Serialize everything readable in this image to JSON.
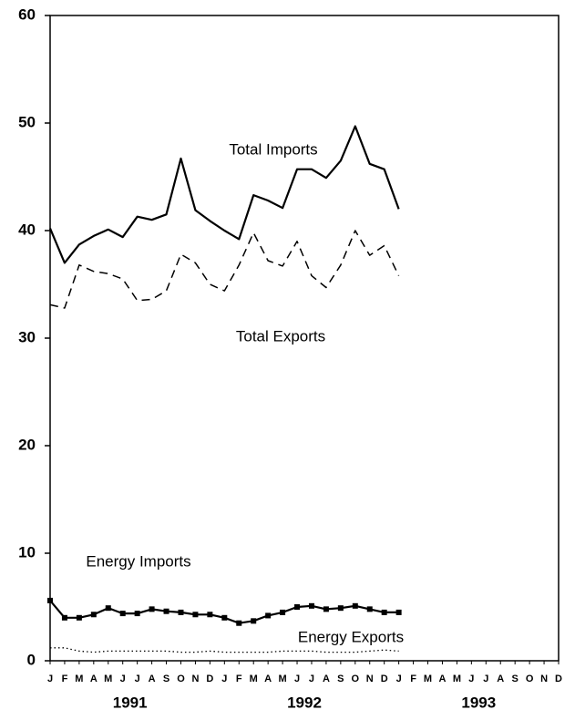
{
  "chart_data": {
    "type": "line",
    "categories": [
      "J",
      "F",
      "M",
      "A",
      "M",
      "J",
      "J",
      "A",
      "S",
      "O",
      "N",
      "D",
      "J",
      "F",
      "M",
      "A",
      "M",
      "J",
      "J",
      "A",
      "S",
      "O",
      "N",
      "D",
      "J",
      "F",
      "M",
      "A",
      "M",
      "J",
      "J",
      "A",
      "S",
      "O",
      "N",
      "D"
    ],
    "years": [
      "1991",
      "1992",
      "1993"
    ],
    "ylim": [
      0,
      60
    ],
    "yticks": [
      0,
      10,
      20,
      30,
      40,
      50,
      60
    ],
    "series": [
      {
        "name": "Total Imports",
        "color": "#000000",
        "style": "solid",
        "marker": "none",
        "values": [
          40.2,
          37.0,
          38.7,
          39.5,
          40.1,
          39.4,
          41.3,
          41.0,
          41.5,
          46.7,
          41.9,
          40.9,
          40.0,
          39.2,
          43.3,
          42.8,
          42.1,
          45.7,
          45.7,
          44.9,
          46.5,
          49.7,
          46.2,
          45.7,
          42.0,
          null,
          null,
          null,
          null,
          null,
          null,
          null,
          null,
          null,
          null,
          null
        ]
      },
      {
        "name": "Total Exports",
        "color": "#000000",
        "style": "dashed",
        "marker": "none",
        "values": [
          33.1,
          32.8,
          36.8,
          36.2,
          36.0,
          35.5,
          33.5,
          33.6,
          34.4,
          37.8,
          37.0,
          35.0,
          34.4,
          36.8,
          39.8,
          37.2,
          36.7,
          39.0,
          35.8,
          34.7,
          36.8,
          40.0,
          37.7,
          38.6,
          35.8,
          null,
          null,
          null,
          null,
          null,
          null,
          null,
          null,
          null,
          null,
          null
        ]
      },
      {
        "name": "Energy Imports",
        "color": "#000000",
        "style": "solid",
        "marker": "square",
        "values": [
          5.6,
          4.0,
          4.0,
          4.3,
          4.9,
          4.4,
          4.4,
          4.8,
          4.6,
          4.5,
          4.3,
          4.3,
          4.0,
          3.5,
          3.7,
          4.2,
          4.5,
          5.0,
          5.1,
          4.8,
          4.9,
          5.1,
          4.8,
          4.5,
          4.5,
          null,
          null,
          null,
          null,
          null,
          null,
          null,
          null,
          null,
          null,
          null
        ]
      },
      {
        "name": "Energy Exports",
        "color": "#000000",
        "style": "dotted",
        "marker": "none",
        "values": [
          1.2,
          1.2,
          0.9,
          0.8,
          0.9,
          0.9,
          0.9,
          0.9,
          0.9,
          0.8,
          0.8,
          0.9,
          0.8,
          0.8,
          0.8,
          0.8,
          0.9,
          0.9,
          0.9,
          0.8,
          0.8,
          0.8,
          0.9,
          1.0,
          0.9,
          null,
          null,
          null,
          null,
          null,
          null,
          null,
          null,
          null,
          null,
          null
        ]
      }
    ]
  }
}
